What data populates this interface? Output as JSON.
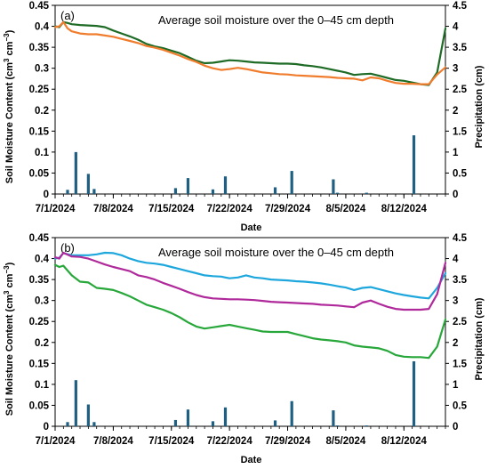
{
  "chart_data": [
    {
      "type": "line",
      "panel_label": "(a)",
      "title": "Average soil moisture over the 0–45 cm depth",
      "xlabel": "Date",
      "ylabel": "Soil Moisture Content (cm³ cm⁻³)",
      "y2label": "Precipitation (cm)",
      "ylim": [
        0,
        0.45
      ],
      "y2lim": [
        0,
        4.5
      ],
      "yticks": [
        "0",
        "0.05",
        "0.1",
        "0.15",
        "0.2",
        "0.25",
        "0.3",
        "0.35",
        "0.4",
        "0.45"
      ],
      "y2ticks": [
        "0",
        "0.5",
        "1",
        "1.5",
        "2",
        "2.5",
        "3",
        "3.5",
        "4",
        "4.5"
      ],
      "xticks": [
        "7/1/2024",
        "7/8/2024",
        "7/15/2024",
        "7/22/2024",
        "7/29/2024",
        "8/5/2024",
        "8/12/2024"
      ],
      "day_range": [
        0,
        47
      ],
      "grid": false,
      "legend": "none",
      "series": [
        {
          "color": "#1e6b26",
          "x": [
            0,
            0.5,
            1,
            1.5,
            2,
            3,
            5,
            6,
            7,
            8,
            9,
            10,
            11,
            12,
            13,
            14,
            15,
            16,
            17,
            18,
            19,
            20,
            21,
            22,
            23,
            24,
            25,
            26,
            27,
            28,
            29,
            30,
            31,
            32,
            33,
            34,
            35,
            36,
            37,
            38,
            39,
            40,
            41,
            42,
            43,
            44,
            45,
            46,
            47
          ],
          "values": [
            0.4,
            0.398,
            0.41,
            0.408,
            0.405,
            0.403,
            0.401,
            0.398,
            0.39,
            0.383,
            0.376,
            0.368,
            0.358,
            0.352,
            0.348,
            0.342,
            0.336,
            0.327,
            0.318,
            0.312,
            0.313,
            0.316,
            0.319,
            0.318,
            0.316,
            0.314,
            0.313,
            0.312,
            0.311,
            0.311,
            0.31,
            0.307,
            0.305,
            0.302,
            0.298,
            0.294,
            0.29,
            0.284,
            0.286,
            0.287,
            0.282,
            0.277,
            0.272,
            0.27,
            0.266,
            0.262,
            0.26,
            0.29,
            0.395
          ]
        },
        {
          "color": "#f07d2e",
          "x": [
            0,
            0.5,
            1,
            1.5,
            2,
            3,
            4,
            5,
            6,
            7,
            8,
            9,
            10,
            11,
            12,
            13,
            14,
            15,
            16,
            17,
            18,
            19,
            20,
            21,
            22,
            23,
            24,
            25,
            26,
            27,
            28,
            29,
            30,
            31,
            32,
            33,
            34,
            35,
            36,
            37,
            38,
            39,
            40,
            41,
            42,
            43,
            44,
            45,
            46,
            47
          ],
          "values": [
            0.398,
            0.4,
            0.41,
            0.395,
            0.388,
            0.383,
            0.381,
            0.381,
            0.378,
            0.375,
            0.37,
            0.365,
            0.36,
            0.353,
            0.349,
            0.344,
            0.337,
            0.33,
            0.322,
            0.315,
            0.306,
            0.3,
            0.296,
            0.298,
            0.301,
            0.298,
            0.294,
            0.29,
            0.288,
            0.286,
            0.285,
            0.283,
            0.282,
            0.281,
            0.28,
            0.279,
            0.277,
            0.276,
            0.275,
            0.271,
            0.278,
            0.276,
            0.27,
            0.265,
            0.263,
            0.263,
            0.262,
            0.262,
            0.285,
            0.302
          ]
        }
      ],
      "bars": {
        "color": "#1f5f82",
        "axis": "y2",
        "x": [
          1.5,
          2.5,
          4,
          4.7,
          14.5,
          16,
          19,
          20.5,
          26.5,
          28.5,
          33.5,
          34,
          37.5,
          43.2
        ],
        "values": [
          0.1,
          1.0,
          0.48,
          0.12,
          0.14,
          0.38,
          0.11,
          0.42,
          0.16,
          0.55,
          0.35,
          0.03,
          0.03,
          1.4
        ]
      }
    },
    {
      "type": "line",
      "panel_label": "(b)",
      "title": "Average soil moisture over the 0–45 cm depth",
      "xlabel": "Date",
      "ylabel": "Soil Moisture Content (cm³ cm⁻³)",
      "y2label": "Precipitation (cm)",
      "ylim": [
        0,
        0.45
      ],
      "y2lim": [
        0,
        4.5
      ],
      "yticks": [
        "0",
        "0.05",
        "0.1",
        "0.15",
        "0.2",
        "0.25",
        "0.3",
        "0.35",
        "0.4",
        "0.45"
      ],
      "y2ticks": [
        "0",
        "0.5",
        "1",
        "1.5",
        "2",
        "2.5",
        "3",
        "3.5",
        "4",
        "4.5"
      ],
      "xticks": [
        "7/1/2024",
        "7/8/2024",
        "7/15/2024",
        "7/22/2024",
        "7/29/2024",
        "8/5/2024",
        "8/12/2024"
      ],
      "day_range": [
        0,
        47
      ],
      "grid": false,
      "legend": "none",
      "series": [
        {
          "color": "#1ea7dd",
          "x": [
            0,
            0.5,
            1,
            2,
            3,
            4,
            5,
            6,
            7,
            8,
            9,
            10,
            11,
            12,
            13,
            14,
            15,
            16,
            17,
            18,
            19,
            20,
            21,
            22,
            23,
            24,
            25,
            26,
            27,
            28,
            29,
            30,
            31,
            32,
            33,
            34,
            35,
            36,
            37,
            38,
            39,
            40,
            41,
            42,
            43,
            44,
            45,
            46,
            47
          ],
          "values": [
            0.4,
            0.402,
            0.413,
            0.408,
            0.408,
            0.408,
            0.41,
            0.414,
            0.413,
            0.408,
            0.4,
            0.394,
            0.39,
            0.388,
            0.385,
            0.38,
            0.375,
            0.37,
            0.365,
            0.36,
            0.358,
            0.357,
            0.353,
            0.355,
            0.36,
            0.355,
            0.353,
            0.35,
            0.349,
            0.348,
            0.346,
            0.345,
            0.343,
            0.341,
            0.338,
            0.334,
            0.331,
            0.325,
            0.33,
            0.332,
            0.327,
            0.322,
            0.317,
            0.313,
            0.31,
            0.307,
            0.305,
            0.33,
            0.365
          ]
        },
        {
          "color": "#b0299b",
          "x": [
            0,
            0.5,
            1,
            2,
            3,
            4,
            5,
            6,
            7,
            8,
            9,
            10,
            11,
            12,
            13,
            14,
            15,
            16,
            17,
            18,
            19,
            20,
            21,
            22,
            23,
            24,
            25,
            26,
            27,
            28,
            29,
            30,
            31,
            32,
            33,
            34,
            35,
            36,
            37,
            38,
            39,
            40,
            41,
            42,
            43,
            44,
            45,
            46,
            47
          ],
          "values": [
            0.403,
            0.4,
            0.414,
            0.405,
            0.404,
            0.4,
            0.393,
            0.386,
            0.38,
            0.375,
            0.37,
            0.36,
            0.356,
            0.35,
            0.342,
            0.335,
            0.328,
            0.32,
            0.313,
            0.308,
            0.305,
            0.304,
            0.303,
            0.303,
            0.302,
            0.301,
            0.299,
            0.297,
            0.296,
            0.295,
            0.294,
            0.293,
            0.292,
            0.29,
            0.289,
            0.288,
            0.286,
            0.284,
            0.295,
            0.3,
            0.292,
            0.285,
            0.28,
            0.278,
            0.278,
            0.278,
            0.28,
            0.315,
            0.39
          ]
        },
        {
          "color": "#28a73a",
          "x": [
            0,
            0.5,
            1,
            2,
            3,
            4,
            5,
            6,
            7,
            8,
            9,
            10,
            11,
            12,
            13,
            14,
            15,
            16,
            17,
            18,
            19,
            20,
            21,
            22,
            23,
            24,
            25,
            26,
            27,
            28,
            29,
            30,
            31,
            32,
            33,
            34,
            35,
            36,
            37,
            38,
            39,
            40,
            41,
            42,
            43,
            44,
            45,
            46,
            47
          ],
          "values": [
            0.385,
            0.38,
            0.383,
            0.36,
            0.345,
            0.343,
            0.33,
            0.328,
            0.325,
            0.318,
            0.31,
            0.3,
            0.29,
            0.284,
            0.278,
            0.27,
            0.26,
            0.248,
            0.238,
            0.233,
            0.236,
            0.239,
            0.242,
            0.238,
            0.234,
            0.23,
            0.226,
            0.225,
            0.225,
            0.225,
            0.22,
            0.215,
            0.21,
            0.207,
            0.205,
            0.203,
            0.2,
            0.193,
            0.19,
            0.188,
            0.186,
            0.18,
            0.17,
            0.166,
            0.165,
            0.165,
            0.163,
            0.19,
            0.255
          ]
        }
      ],
      "bars": {
        "color": "#1f5f82",
        "axis": "y2",
        "x": [
          1.5,
          2.5,
          4,
          4.7,
          14.5,
          16,
          19,
          20.5,
          26.5,
          28.5,
          33.5,
          34,
          37.5,
          43.2
        ],
        "values": [
          0.1,
          1.1,
          0.52,
          0.1,
          0.15,
          0.4,
          0.12,
          0.45,
          0.14,
          0.6,
          0.38,
          0.02,
          0.02,
          1.55
        ]
      }
    }
  ]
}
